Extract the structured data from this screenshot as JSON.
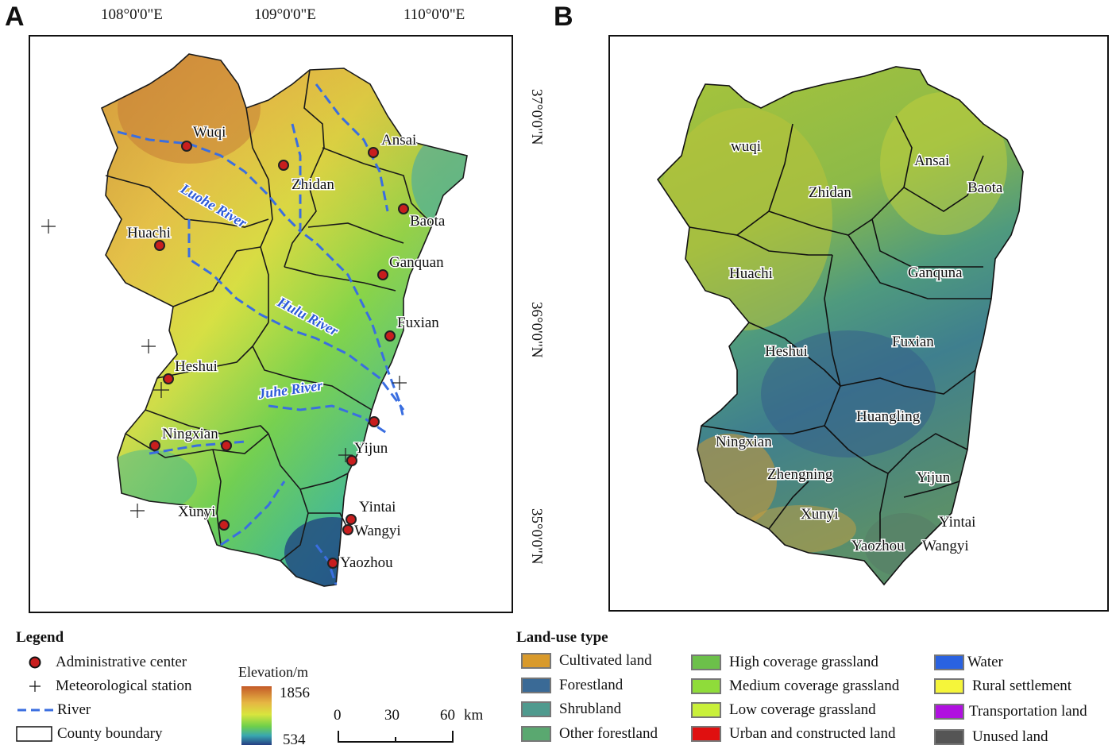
{
  "panel_a": {
    "label": "A",
    "lon_ticks": [
      "108°0'0\"E",
      "109°0'0\"E",
      "110°0'0\"E"
    ],
    "lat_ticks": [
      "37°0'0\"N",
      "36°0'0\"N",
      "35°0'0\"N"
    ],
    "counties": [
      "Wuqi",
      "Zhidan",
      "Ansai",
      "Baota",
      "Huachi",
      "Ganquan",
      "Fuxian",
      "Heshui",
      "Ningxian",
      "Yijun",
      "Yintai",
      "Xunyi",
      "Wangyi",
      "Yaozhou"
    ],
    "rivers": [
      "Luohe River",
      "Hulu River",
      "Juhe River"
    ]
  },
  "panel_b": {
    "label": "B",
    "counties": [
      "wuqi",
      "Zhidan",
      "Ansai",
      "Baota",
      "Huachi",
      "Ganquna",
      "Heshui",
      "Fuxian",
      "Huangling",
      "Ningxian",
      "Zhengning",
      "Yijun",
      "Xunyi",
      "Yintai",
      "Yaozhou",
      "Wangyi"
    ]
  },
  "legend": {
    "title": "Legend",
    "items": [
      "Administrative center",
      "Meteorological station",
      "River",
      "County boundary"
    ],
    "elevation_title": "Elevation/m",
    "elevation_max": "1856",
    "elevation_min": "534",
    "scale_labels": [
      "0",
      "30",
      "60"
    ],
    "scale_unit": "km"
  },
  "landuse_legend": {
    "title": "Land-use type",
    "items": [
      {
        "label": "Cultivated land",
        "color": "#d99a2b"
      },
      {
        "label": "Forestland",
        "color": "#3a6a96"
      },
      {
        "label": "Shrubland",
        "color": "#4f9a8e"
      },
      {
        "label": "Other forestland",
        "color": "#5aa870"
      },
      {
        "label": "High coverage grassland",
        "color": "#6cc04a"
      },
      {
        "label": "Medium coverage grassland",
        "color": "#8fdc3a"
      },
      {
        "label": "Low coverage grassland",
        "color": "#c9f03a"
      },
      {
        "label": "Urban and constructed land",
        "color": "#e01010"
      },
      {
        "label": "Water",
        "color": "#2a62e0"
      },
      {
        "label": "Rural settlement",
        "color": "#f5f53a"
      },
      {
        "label": "Transportation land",
        "color": "#b010e0"
      },
      {
        "label": "Unused land",
        "color": "#555555"
      }
    ]
  }
}
